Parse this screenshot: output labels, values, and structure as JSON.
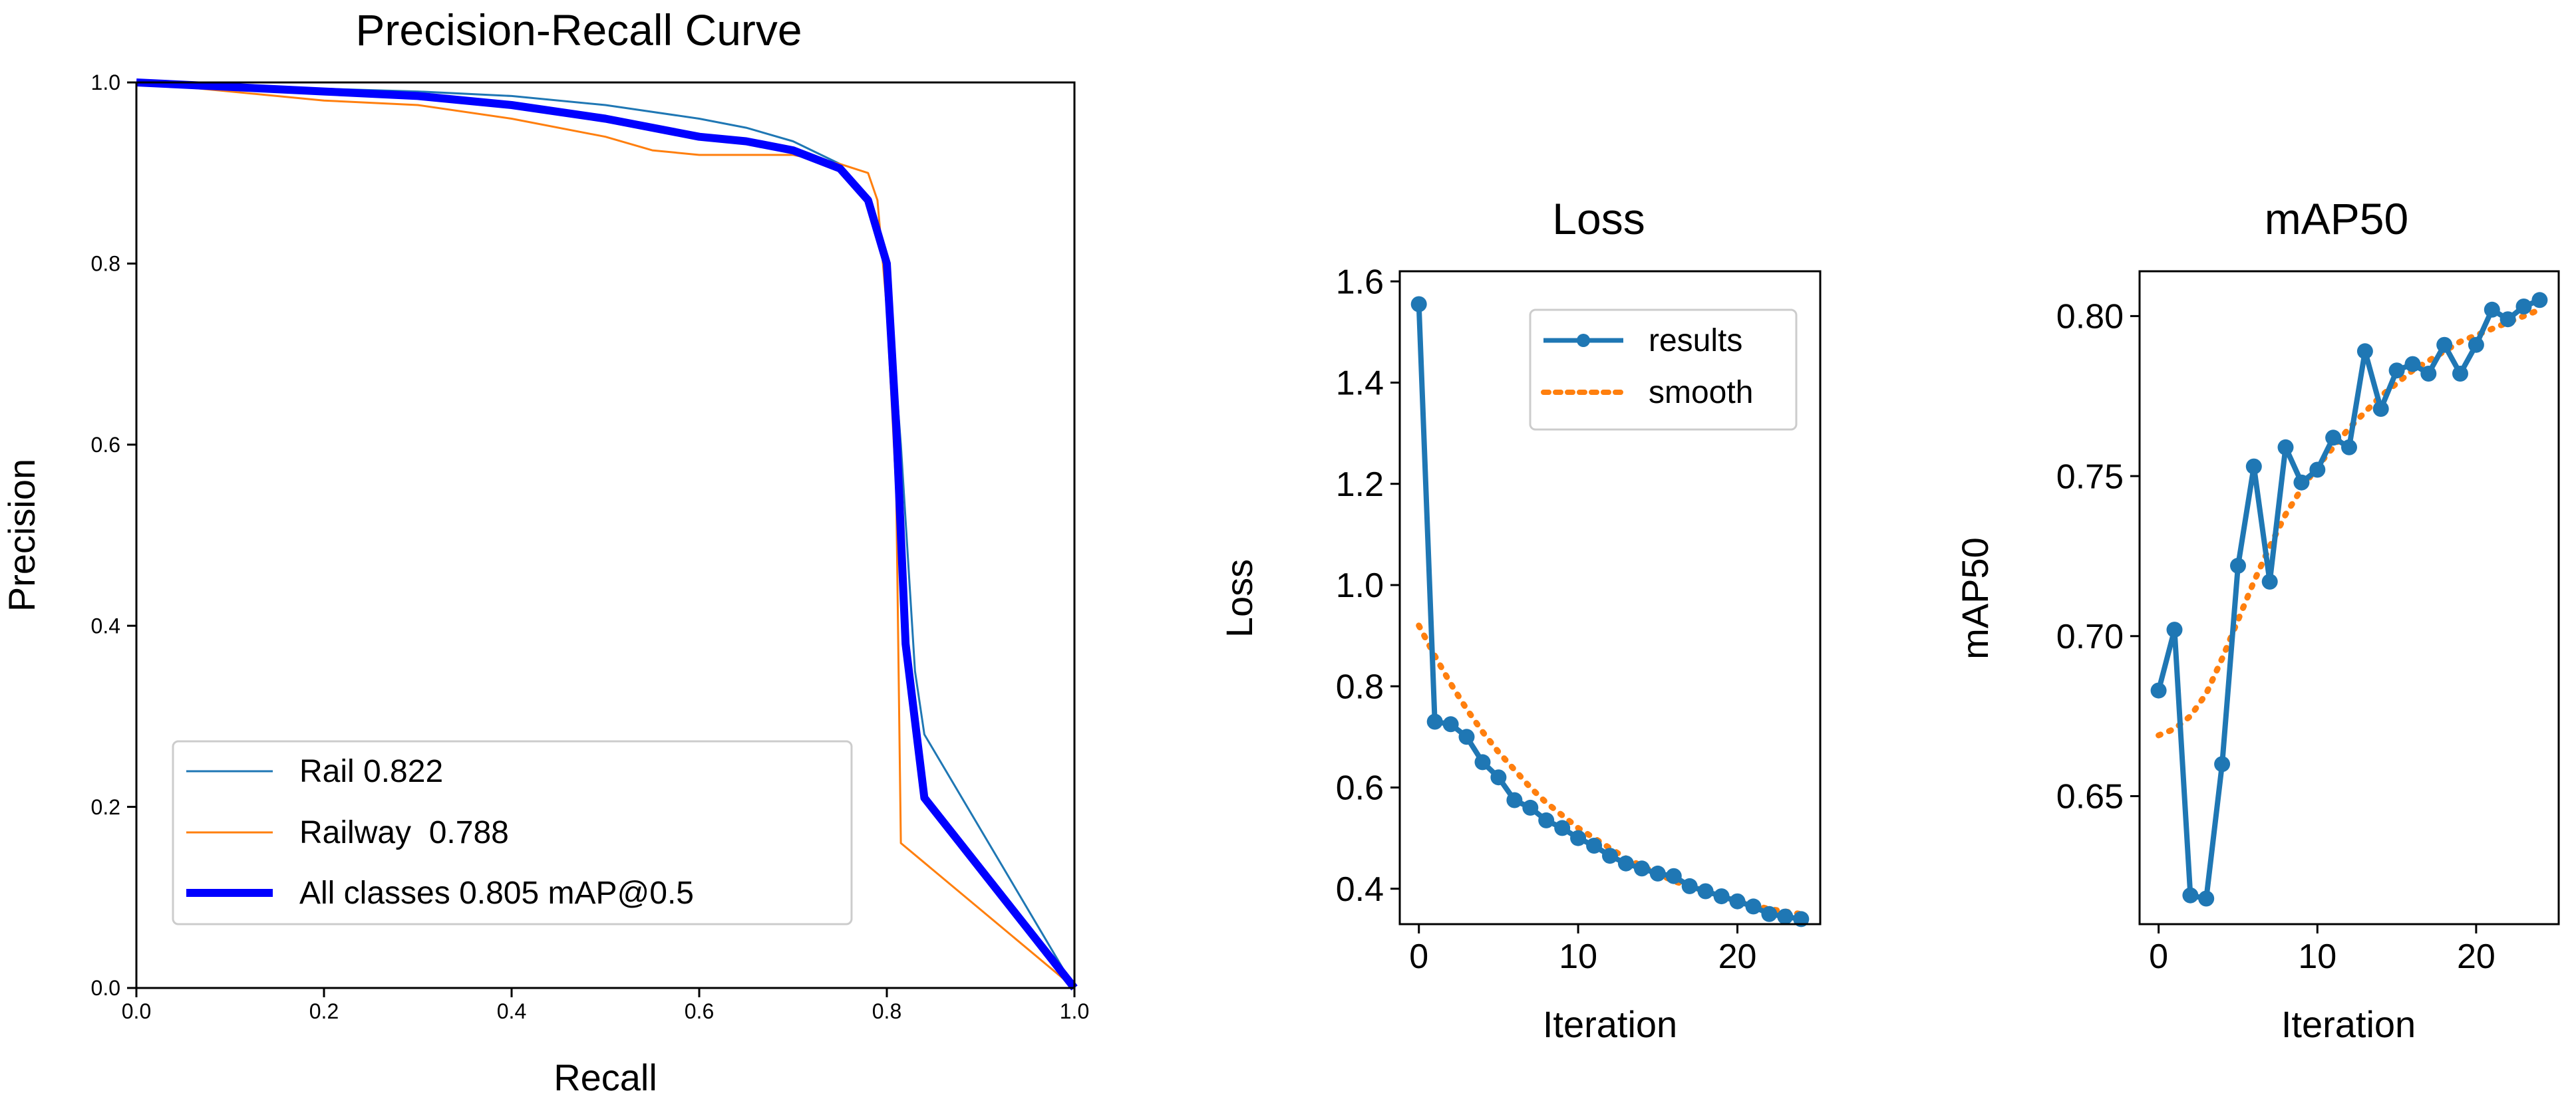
{
  "chart_data": [
    {
      "type": "line",
      "title": "Precision-Recall Curve",
      "xlabel": "Recall",
      "ylabel": "Precision",
      "xlim": [
        0,
        1
      ],
      "ylim": [
        0,
        1
      ],
      "xticks": [
        "0.0",
        "0.2",
        "0.4",
        "0.6",
        "0.8",
        "1.0"
      ],
      "yticks": [
        "0.0",
        "0.2",
        "0.4",
        "0.6",
        "0.8",
        "1.0"
      ],
      "grid": false,
      "legend_position": "lower-left",
      "series": [
        {
          "name": "Rail 0.822",
          "color": "#1f77b4",
          "points": [
            [
              0,
              1.0
            ],
            [
              0.1,
              0.997
            ],
            [
              0.2,
              0.993
            ],
            [
              0.3,
              0.99
            ],
            [
              0.4,
              0.985
            ],
            [
              0.5,
              0.975
            ],
            [
              0.6,
              0.96
            ],
            [
              0.65,
              0.95
            ],
            [
              0.7,
              0.935
            ],
            [
              0.75,
              0.91
            ],
            [
              0.78,
              0.87
            ],
            [
              0.8,
              0.8
            ],
            [
              0.815,
              0.6
            ],
            [
              0.83,
              0.35
            ],
            [
              0.84,
              0.28
            ],
            [
              1.0,
              0.0
            ]
          ]
        },
        {
          "name": "Railway  0.788",
          "color": "#ff7f0e",
          "points": [
            [
              0,
              1.0
            ],
            [
              0.1,
              0.99
            ],
            [
              0.2,
              0.98
            ],
            [
              0.3,
              0.975
            ],
            [
              0.4,
              0.96
            ],
            [
              0.5,
              0.94
            ],
            [
              0.55,
              0.925
            ],
            [
              0.6,
              0.92
            ],
            [
              0.7,
              0.92
            ],
            [
              0.75,
              0.91
            ],
            [
              0.78,
              0.9
            ],
            [
              0.79,
              0.87
            ],
            [
              0.8,
              0.75
            ],
            [
              0.81,
              0.55
            ],
            [
              0.815,
              0.16
            ],
            [
              1.0,
              0.0
            ]
          ]
        },
        {
          "name": "All classes 0.805 mAP@0.5",
          "color": "#0000ff",
          "points": [
            [
              0,
              1.0
            ],
            [
              0.1,
              0.995
            ],
            [
              0.2,
              0.99
            ],
            [
              0.3,
              0.985
            ],
            [
              0.4,
              0.975
            ],
            [
              0.5,
              0.96
            ],
            [
              0.6,
              0.94
            ],
            [
              0.65,
              0.935
            ],
            [
              0.7,
              0.925
            ],
            [
              0.75,
              0.905
            ],
            [
              0.78,
              0.87
            ],
            [
              0.8,
              0.8
            ],
            [
              0.81,
              0.62
            ],
            [
              0.82,
              0.38
            ],
            [
              0.84,
              0.21
            ],
            [
              1.0,
              0.0
            ]
          ]
        }
      ]
    },
    {
      "type": "line",
      "title": "Loss",
      "xlabel": "Iteration",
      "ylabel": "Loss",
      "xlim": [
        -1.2,
        25.2
      ],
      "ylim": [
        0.33,
        1.62
      ],
      "xticks": [
        0,
        10,
        20
      ],
      "yticks": [
        "0.4",
        "0.6",
        "0.8",
        "1.0",
        "1.2",
        "1.4",
        "1.6"
      ],
      "grid": false,
      "legend_position": "upper-right",
      "series": [
        {
          "name": "results",
          "color": "#1f77b4",
          "x": [
            0,
            1,
            2,
            3,
            4,
            5,
            6,
            7,
            8,
            9,
            10,
            11,
            12,
            13,
            14,
            15,
            16,
            17,
            18,
            19,
            20,
            21,
            22,
            23,
            24
          ],
          "values": [
            1.555,
            0.73,
            0.725,
            0.7,
            0.65,
            0.62,
            0.575,
            0.56,
            0.535,
            0.52,
            0.5,
            0.485,
            0.465,
            0.45,
            0.44,
            0.43,
            0.425,
            0.405,
            0.395,
            0.385,
            0.375,
            0.365,
            0.35,
            0.345,
            0.34
          ]
        },
        {
          "name": "smooth",
          "color": "#ff7f0e",
          "x": [
            0,
            1,
            2,
            3,
            4,
            5,
            6,
            7,
            8,
            9,
            10,
            11,
            12,
            13,
            14,
            15,
            16,
            17,
            18,
            19,
            20,
            21,
            22,
            23,
            24
          ],
          "values": [
            0.92,
            0.86,
            0.805,
            0.755,
            0.71,
            0.67,
            0.635,
            0.6,
            0.57,
            0.545,
            0.52,
            0.5,
            0.48,
            0.46,
            0.445,
            0.43,
            0.415,
            0.405,
            0.395,
            0.385,
            0.375,
            0.367,
            0.36,
            0.355,
            0.35
          ]
        }
      ]
    },
    {
      "type": "line",
      "title": "mAP50",
      "xlabel": "Iteration",
      "ylabel": "mAP50",
      "xlim": [
        -1.2,
        25.2
      ],
      "ylim": [
        0.61,
        0.814
      ],
      "xticks": [
        0,
        10,
        20
      ],
      "yticks": [
        "0.65",
        "0.70",
        "0.75",
        "0.80"
      ],
      "grid": false,
      "series": [
        {
          "name": "results",
          "color": "#1f77b4",
          "x": [
            0,
            1,
            2,
            3,
            4,
            5,
            6,
            7,
            8,
            9,
            10,
            11,
            12,
            13,
            14,
            15,
            16,
            17,
            18,
            19,
            20,
            21,
            22,
            23,
            24
          ],
          "values": [
            0.683,
            0.702,
            0.619,
            0.618,
            0.66,
            0.722,
            0.753,
            0.717,
            0.759,
            0.748,
            0.752,
            0.762,
            0.759,
            0.789,
            0.771,
            0.783,
            0.785,
            0.782,
            0.791,
            0.782,
            0.791,
            0.802,
            0.799,
            0.803,
            0.805
          ]
        },
        {
          "name": "smooth",
          "color": "#ff7f0e",
          "x": [
            0,
            1,
            2,
            3,
            4,
            5,
            6,
            7,
            8,
            9,
            10,
            11,
            12,
            13,
            14,
            15,
            16,
            17,
            18,
            19,
            20,
            21,
            22,
            23,
            24
          ],
          "values": [
            0.669,
            0.671,
            0.675,
            0.682,
            0.693,
            0.705,
            0.717,
            0.728,
            0.738,
            0.746,
            0.753,
            0.759,
            0.765,
            0.77,
            0.775,
            0.779,
            0.783,
            0.786,
            0.789,
            0.792,
            0.794,
            0.796,
            0.798,
            0.8,
            0.802
          ]
        }
      ]
    }
  ]
}
